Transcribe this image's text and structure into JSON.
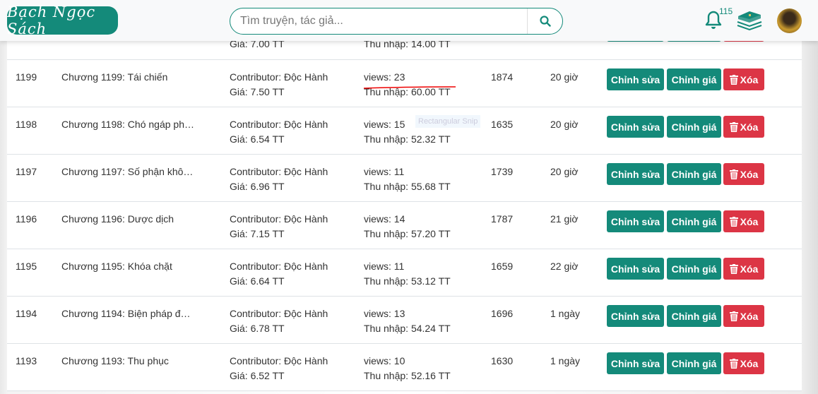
{
  "header": {
    "logo_text": "Bạch Ngọc Sách",
    "search_placeholder": "Tìm truyện, tác giả...",
    "notification_count": "115"
  },
  "actions": {
    "edit": "Chỉnh sửa",
    "price": "Chỉnh giá",
    "delete": "Xóa"
  },
  "partial_row": {
    "price": "Giá: 7.00 TT",
    "income": "Thu nhập: 14.00 TT"
  },
  "overlay_label": "Rectangular Snip",
  "colors": {
    "accent": "#148a7a",
    "danger": "#dc3545"
  },
  "rows": [
    {
      "id": "1199",
      "title": "Chương 1199: Tái chiến",
      "contributor": "Contributor: Độc Hành",
      "price": "Giá: 7.50 TT",
      "views": "views: 23",
      "income": "Thu nhập: 60.00 TT",
      "count": "1874",
      "time": "20 giờ"
    },
    {
      "id": "1198",
      "title": "Chương 1198: Chó ngáp ph…",
      "contributor": "Contributor: Độc Hành",
      "price": "Giá: 6.54 TT",
      "views": "views: 15",
      "income": "Thu nhập: 52.32 TT",
      "count": "1635",
      "time": "20 giờ"
    },
    {
      "id": "1197",
      "title": "Chương 1197: Số phận khô…",
      "contributor": "Contributor: Độc Hành",
      "price": "Giá: 6.96 TT",
      "views": "views: 11",
      "income": "Thu nhập: 55.68 TT",
      "count": "1739",
      "time": "20 giờ"
    },
    {
      "id": "1196",
      "title": "Chương 1196: Dược dịch",
      "contributor": "Contributor: Độc Hành",
      "price": "Giá: 7.15 TT",
      "views": "views: 14",
      "income": "Thu nhập: 57.20 TT",
      "count": "1787",
      "time": "21 giờ"
    },
    {
      "id": "1195",
      "title": "Chương 1195: Khóa chặt",
      "contributor": "Contributor: Độc Hành",
      "price": "Giá: 6.64 TT",
      "views": "views: 11",
      "income": "Thu nhập: 53.12 TT",
      "count": "1659",
      "time": "22 giờ"
    },
    {
      "id": "1194",
      "title": "Chương 1194: Biện pháp đ…",
      "contributor": "Contributor: Độc Hành",
      "price": "Giá: 6.78 TT",
      "views": "views: 13",
      "income": "Thu nhập: 54.24 TT",
      "count": "1696",
      "time": "1 ngày"
    },
    {
      "id": "1193",
      "title": "Chương 1193: Thu phục",
      "contributor": "Contributor: Độc Hành",
      "price": "Giá: 6.52 TT",
      "views": "views: 10",
      "income": "Thu nhập: 52.16 TT",
      "count": "1630",
      "time": "1 ngày"
    }
  ]
}
